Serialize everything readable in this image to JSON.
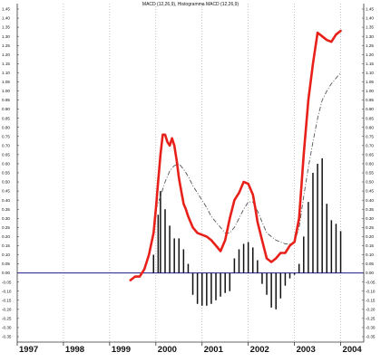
{
  "chart_data": {
    "type": "line",
    "title": "MACD (12,26,9), Histogramma MACD (12,26,9)",
    "xlabel": "",
    "ylabel": "",
    "ylim": [
      -0.36,
      1.45
    ],
    "xlim": [
      1997.0,
      2004.5
    ],
    "y_ticks": [
      1.45,
      1.4,
      1.35,
      1.3,
      1.25,
      1.2,
      1.15,
      1.1,
      1.05,
      1.0,
      0.95,
      0.9,
      0.85,
      0.8,
      0.75,
      0.7,
      0.65,
      0.6,
      0.55,
      0.5,
      0.45,
      0.4,
      0.35,
      0.3,
      0.25,
      0.2,
      0.15,
      0.1,
      0.05,
      0.0,
      -0.05,
      -0.1,
      -0.15,
      -0.2,
      -0.25,
      -0.3,
      -0.35
    ],
    "y_tick_labels": [
      "1.45",
      "1.40",
      "1.35",
      "1.30",
      "1.25",
      "1.20",
      "1.15",
      "1.10",
      "1.05",
      "1.00",
      "0.95",
      "0.90",
      "0.85",
      "0.80",
      "0.75",
      "0.70",
      "0.65",
      "0.60",
      "0.55",
      "0.50",
      "0.45",
      "0.40",
      "0.35",
      "0.30",
      "0.25",
      "0.20",
      "0.15",
      "0.10",
      "0.05",
      "0.00",
      "-0.05",
      "-0.10",
      "-0.15",
      "-0.20",
      "-0.25",
      "-0.30",
      "-0.35"
    ],
    "x_ticks": [
      1997,
      1998,
      1999,
      2000,
      2001,
      2002,
      2003,
      2004
    ],
    "x_tick_labels": [
      "1997",
      "1998",
      "1999",
      "2000",
      "2001",
      "2002",
      "2003",
      "2004"
    ],
    "grid": "vertical-dotted",
    "zero_line": true,
    "series": [
      {
        "style": "macd",
        "color": "#e8201a",
        "x": [
          1999.45,
          1999.55,
          1999.65,
          1999.75,
          1999.85,
          1999.95,
          2000.0,
          2000.05,
          2000.1,
          2000.15,
          2000.2,
          2000.25,
          2000.3,
          2000.35,
          2000.4,
          2000.45,
          2000.5,
          2000.55,
          2000.6,
          2000.65,
          2000.7,
          2000.75,
          2000.8,
          2000.9,
          2001.0,
          2001.1,
          2001.2,
          2001.3,
          2001.4,
          2001.5,
          2001.6,
          2001.7,
          2001.8,
          2001.9,
          2002.0,
          2002.1,
          2002.15,
          2002.2,
          2002.3,
          2002.4,
          2002.5,
          2002.6,
          2002.7,
          2002.8,
          2002.9,
          2003.0,
          2003.1,
          2003.2,
          2003.3,
          2003.4,
          2003.5,
          2003.6,
          2003.7,
          2003.8,
          2003.9,
          2004.0
        ],
        "values": [
          -0.04,
          -0.02,
          -0.02,
          0.02,
          0.1,
          0.22,
          0.35,
          0.5,
          0.65,
          0.76,
          0.76,
          0.72,
          0.7,
          0.74,
          0.7,
          0.62,
          0.52,
          0.45,
          0.38,
          0.35,
          0.31,
          0.28,
          0.25,
          0.22,
          0.21,
          0.2,
          0.18,
          0.15,
          0.12,
          0.18,
          0.3,
          0.4,
          0.44,
          0.5,
          0.49,
          0.43,
          0.36,
          0.28,
          0.18,
          0.08,
          0.06,
          0.08,
          0.11,
          0.11,
          0.15,
          0.17,
          0.3,
          0.65,
          0.95,
          1.15,
          1.32,
          1.3,
          1.28,
          1.27,
          1.31,
          1.33
        ]
      },
      {
        "style": "signal",
        "color": "#555555",
        "x": [
          2000.0,
          2000.1,
          2000.2,
          2000.3,
          2000.4,
          2000.5,
          2000.6,
          2000.7,
          2000.8,
          2000.9,
          2001.0,
          2001.1,
          2001.2,
          2001.3,
          2001.4,
          2001.5,
          2001.6,
          2001.7,
          2001.8,
          2001.9,
          2002.0,
          2002.1,
          2002.2,
          2002.3,
          2002.4,
          2002.5,
          2002.6,
          2002.7,
          2002.8,
          2002.9,
          2003.0,
          2003.1,
          2003.2,
          2003.3,
          2003.4,
          2003.5,
          2003.6,
          2003.7,
          2003.8,
          2003.9,
          2004.0
        ],
        "values": [
          0.35,
          0.42,
          0.5,
          0.56,
          0.59,
          0.6,
          0.57,
          0.53,
          0.48,
          0.44,
          0.4,
          0.36,
          0.31,
          0.28,
          0.25,
          0.22,
          0.22,
          0.25,
          0.3,
          0.35,
          0.39,
          0.39,
          0.34,
          0.28,
          0.22,
          0.2,
          0.18,
          0.17,
          0.16,
          0.16,
          0.17,
          0.25,
          0.42,
          0.58,
          0.72,
          0.85,
          0.95,
          1.0,
          1.04,
          1.07,
          1.1
        ]
      }
    ],
    "histogram": {
      "color": "#111111",
      "x": [
        1999.95,
        2000.05,
        2000.1,
        2000.2,
        2000.3,
        2000.4,
        2000.5,
        2000.6,
        2000.7,
        2000.8,
        2000.9,
        2001.0,
        2001.1,
        2001.2,
        2001.3,
        2001.4,
        2001.5,
        2001.6,
        2001.7,
        2001.8,
        2001.9,
        2002.0,
        2002.1,
        2002.2,
        2002.3,
        2002.4,
        2002.5,
        2002.6,
        2002.7,
        2002.8,
        2002.9,
        2003.0,
        2003.1,
        2003.2,
        2003.3,
        2003.4,
        2003.5,
        2003.6,
        2003.7,
        2003.8,
        2003.9,
        2004.0
      ],
      "values": [
        0.1,
        0.32,
        0.45,
        0.35,
        0.26,
        0.19,
        0.19,
        0.13,
        0.05,
        -0.12,
        -0.17,
        -0.18,
        -0.18,
        -0.17,
        -0.15,
        -0.13,
        -0.11,
        -0.1,
        0.08,
        0.13,
        0.16,
        0.17,
        0.14,
        0.07,
        -0.06,
        -0.12,
        -0.19,
        -0.2,
        -0.14,
        -0.07,
        -0.03,
        -0.01,
        0.05,
        0.2,
        0.39,
        0.55,
        0.6,
        0.63,
        0.38,
        0.29,
        0.27,
        0.23
      ]
    }
  }
}
